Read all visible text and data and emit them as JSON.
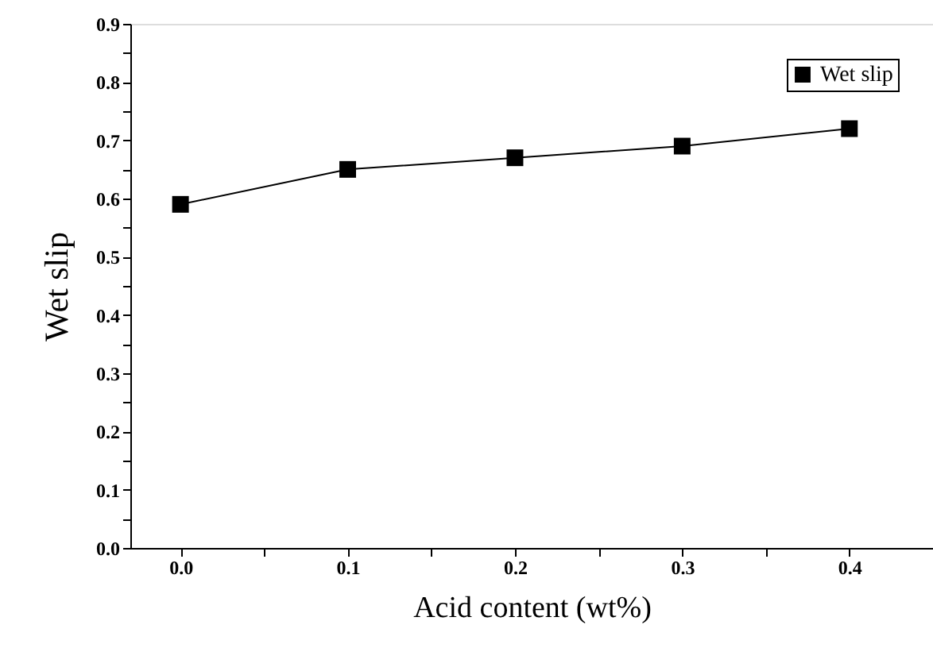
{
  "chart_data": {
    "type": "line",
    "xlabel": "Acid content (wt%)",
    "ylabel": "Wet slip",
    "x": [
      0,
      0.1,
      0.2,
      0.3,
      0.4
    ],
    "series": [
      {
        "name": "Wet slip",
        "color": "#000000",
        "values": [
          0.59,
          0.65,
          0.67,
          0.69,
          0.72
        ]
      }
    ],
    "xlim": [
      -0.03,
      0.45
    ],
    "xticks": [
      {
        "value": 0,
        "label": "0.0"
      },
      {
        "value": 0.05,
        "label": null
      },
      0.1,
      {
        "value": 0.15,
        "label": null
      },
      0.2,
      {
        "value": 0.25,
        "label": null
      },
      0.3,
      {
        "value": 0.35,
        "label": null
      },
      0.4
    ],
    "ylim": [
      0,
      0.9
    ],
    "yticks": [
      {
        "value": 0,
        "label": "0.0"
      },
      {
        "value": 0.05,
        "label": null
      },
      0.1,
      {
        "value": 0.15,
        "label": null
      },
      0.2,
      {
        "value": 0.25,
        "label": null
      },
      0.3,
      {
        "value": 0.35,
        "label": null
      },
      0.4,
      {
        "value": 0.45,
        "label": null
      },
      0.5,
      {
        "value": 0.55,
        "label": null
      },
      0.6,
      {
        "value": 0.65,
        "label": null
      },
      0.7,
      {
        "value": 0.75,
        "label": null
      },
      0.8,
      {
        "value": 0.85,
        "label": null
      },
      0.9
    ],
    "grid": false,
    "legend": "top right",
    "marker": "square",
    "line_style": "solid"
  }
}
